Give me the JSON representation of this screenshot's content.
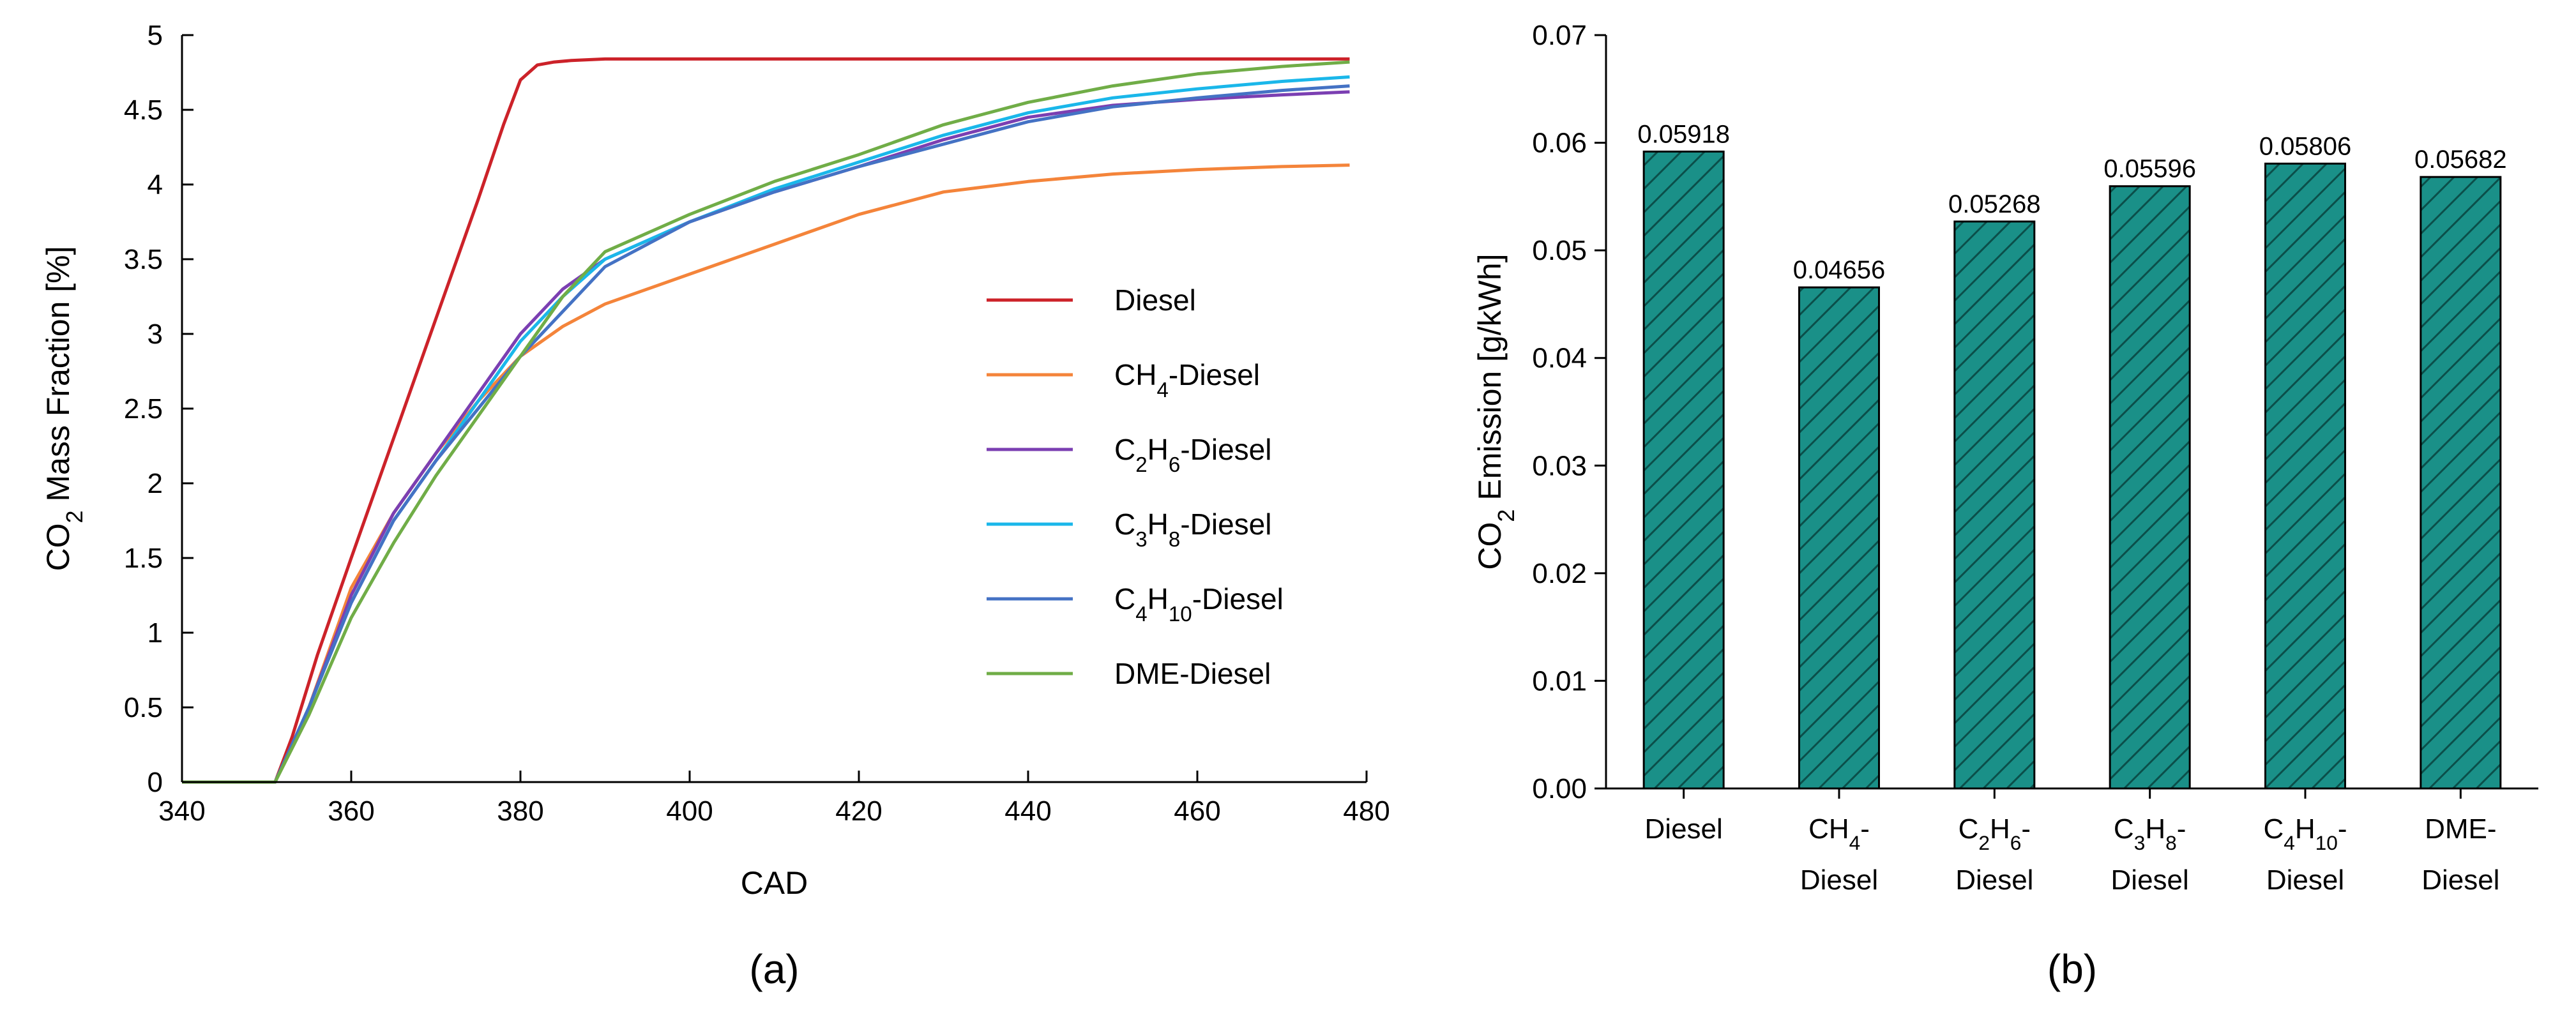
{
  "chart_data": [
    {
      "type": "line",
      "caption": "(a)",
      "xlabel": "CAD",
      "ylabel": {
        "pre": "CO",
        "sub": "2",
        "post": " Mass Fraction  [%]"
      },
      "xlim": [
        340,
        480
      ],
      "ylim": [
        0,
        5
      ],
      "xticks": [
        340,
        360,
        380,
        400,
        420,
        440,
        460,
        480
      ],
      "yticks": [
        "0",
        "0.5",
        "1",
        "1.5",
        "2",
        "2.5",
        "3",
        "3.5",
        "4",
        "4.5",
        "5"
      ],
      "grid": false,
      "legend_position": "center-right",
      "series": [
        {
          "name": [
            {
              "t": "Diesel"
            }
          ],
          "color": "#cc2229",
          "x": [
            340,
            351,
            353,
            356,
            360,
            365,
            370,
            375,
            378,
            380,
            382,
            384,
            386,
            390,
            400,
            420,
            440,
            460,
            478
          ],
          "y": [
            0,
            0,
            0.3,
            0.85,
            1.5,
            2.3,
            3.1,
            3.9,
            4.4,
            4.7,
            4.8,
            4.82,
            4.83,
            4.84,
            4.84,
            4.84,
            4.84,
            4.84,
            4.84
          ]
        },
        {
          "name": [
            {
              "t": "CH"
            },
            {
              "t": "4",
              "sub": true
            },
            {
              "t": "-Diesel"
            }
          ],
          "color": "#f4843a",
          "x": [
            340,
            351,
            355,
            360,
            365,
            370,
            375,
            380,
            385,
            390,
            400,
            410,
            420,
            430,
            440,
            450,
            460,
            470,
            478
          ],
          "y": [
            0,
            0,
            0.5,
            1.3,
            1.8,
            2.2,
            2.55,
            2.85,
            3.05,
            3.2,
            3.4,
            3.6,
            3.8,
            3.95,
            4.02,
            4.07,
            4.1,
            4.12,
            4.13
          ]
        },
        {
          "name": [
            {
              "t": "C"
            },
            {
              "t": "2",
              "sub": true
            },
            {
              "t": "H"
            },
            {
              "t": "6",
              "sub": true
            },
            {
              "t": "-Diesel"
            }
          ],
          "color": "#7b3fb2",
          "x": [
            340,
            351,
            355,
            360,
            365,
            370,
            375,
            380,
            385,
            390,
            400,
            410,
            420,
            430,
            440,
            450,
            460,
            470,
            478
          ],
          "y": [
            0,
            0,
            0.5,
            1.25,
            1.8,
            2.2,
            2.6,
            3.0,
            3.3,
            3.5,
            3.75,
            3.95,
            4.12,
            4.3,
            4.45,
            4.53,
            4.57,
            4.6,
            4.62
          ]
        },
        {
          "name": [
            {
              "t": "C"
            },
            {
              "t": "3",
              "sub": true
            },
            {
              "t": "H"
            },
            {
              "t": "8",
              "sub": true
            },
            {
              "t": "-Diesel"
            }
          ],
          "color": "#1ab7ea",
          "x": [
            340,
            351,
            355,
            360,
            365,
            370,
            375,
            380,
            385,
            390,
            400,
            410,
            420,
            430,
            440,
            450,
            460,
            470,
            478
          ],
          "y": [
            0,
            0,
            0.5,
            1.2,
            1.75,
            2.15,
            2.55,
            2.95,
            3.25,
            3.5,
            3.75,
            3.97,
            4.15,
            4.33,
            4.48,
            4.58,
            4.64,
            4.69,
            4.72
          ]
        },
        {
          "name": [
            {
              "t": "C"
            },
            {
              "t": "4",
              "sub": true
            },
            {
              "t": "H"
            },
            {
              "t": "10",
              "sub": true
            },
            {
              "t": "-Diesel"
            }
          ],
          "color": "#4472c4",
          "x": [
            340,
            351,
            355,
            360,
            365,
            370,
            375,
            380,
            385,
            390,
            400,
            410,
            420,
            430,
            440,
            450,
            460,
            470,
            478
          ],
          "y": [
            0,
            0,
            0.5,
            1.2,
            1.75,
            2.15,
            2.5,
            2.85,
            3.15,
            3.45,
            3.75,
            3.95,
            4.12,
            4.27,
            4.42,
            4.52,
            4.58,
            4.63,
            4.66
          ]
        },
        {
          "name": [
            {
              "t": "DME-Diesel"
            }
          ],
          "color": "#70ad47",
          "x": [
            340,
            351,
            355,
            360,
            365,
            370,
            375,
            380,
            385,
            390,
            400,
            410,
            420,
            430,
            440,
            450,
            460,
            470,
            478
          ],
          "y": [
            0,
            0,
            0.45,
            1.1,
            1.6,
            2.05,
            2.45,
            2.85,
            3.25,
            3.55,
            3.8,
            4.02,
            4.2,
            4.4,
            4.55,
            4.66,
            4.74,
            4.79,
            4.82
          ]
        }
      ]
    },
    {
      "type": "bar",
      "caption": "(b)",
      "ylabel": {
        "pre": "CO",
        "sub": "2",
        "post": " Emission  [g/kWh]"
      },
      "ylim": [
        0,
        0.07
      ],
      "yticks": [
        "0.00",
        "0.01",
        "0.02",
        "0.03",
        "0.04",
        "0.05",
        "0.06",
        "0.07"
      ],
      "bar_color": "#1a9088",
      "grid": false,
      "categories": [
        {
          "line1": [
            {
              "t": "Diesel"
            }
          ],
          "line2": []
        },
        {
          "line1": [
            {
              "t": "CH"
            },
            {
              "t": "4",
              "sub": true
            },
            {
              "t": "-"
            }
          ],
          "line2": [
            {
              "t": "Diesel"
            }
          ]
        },
        {
          "line1": [
            {
              "t": "C"
            },
            {
              "t": "2",
              "sub": true
            },
            {
              "t": "H"
            },
            {
              "t": "6",
              "sub": true
            },
            {
              "t": "-"
            }
          ],
          "line2": [
            {
              "t": "Diesel"
            }
          ]
        },
        {
          "line1": [
            {
              "t": "C"
            },
            {
              "t": "3",
              "sub": true
            },
            {
              "t": "H"
            },
            {
              "t": "8",
              "sub": true
            },
            {
              "t": "-"
            }
          ],
          "line2": [
            {
              "t": "Diesel"
            }
          ]
        },
        {
          "line1": [
            {
              "t": "C"
            },
            {
              "t": "4",
              "sub": true
            },
            {
              "t": "H"
            },
            {
              "t": "10",
              "sub": true
            },
            {
              "t": "-"
            }
          ],
          "line2": [
            {
              "t": "Diesel"
            }
          ]
        },
        {
          "line1": [
            {
              "t": "DME-"
            }
          ],
          "line2": [
            {
              "t": "Diesel"
            }
          ]
        }
      ],
      "values": [
        0.05918,
        0.04656,
        0.05268,
        0.05596,
        0.05806,
        0.05682
      ],
      "data_labels": [
        "0.05918",
        "0.04656",
        "0.05268",
        "0.05596",
        "0.05806",
        "0.05682"
      ]
    }
  ]
}
